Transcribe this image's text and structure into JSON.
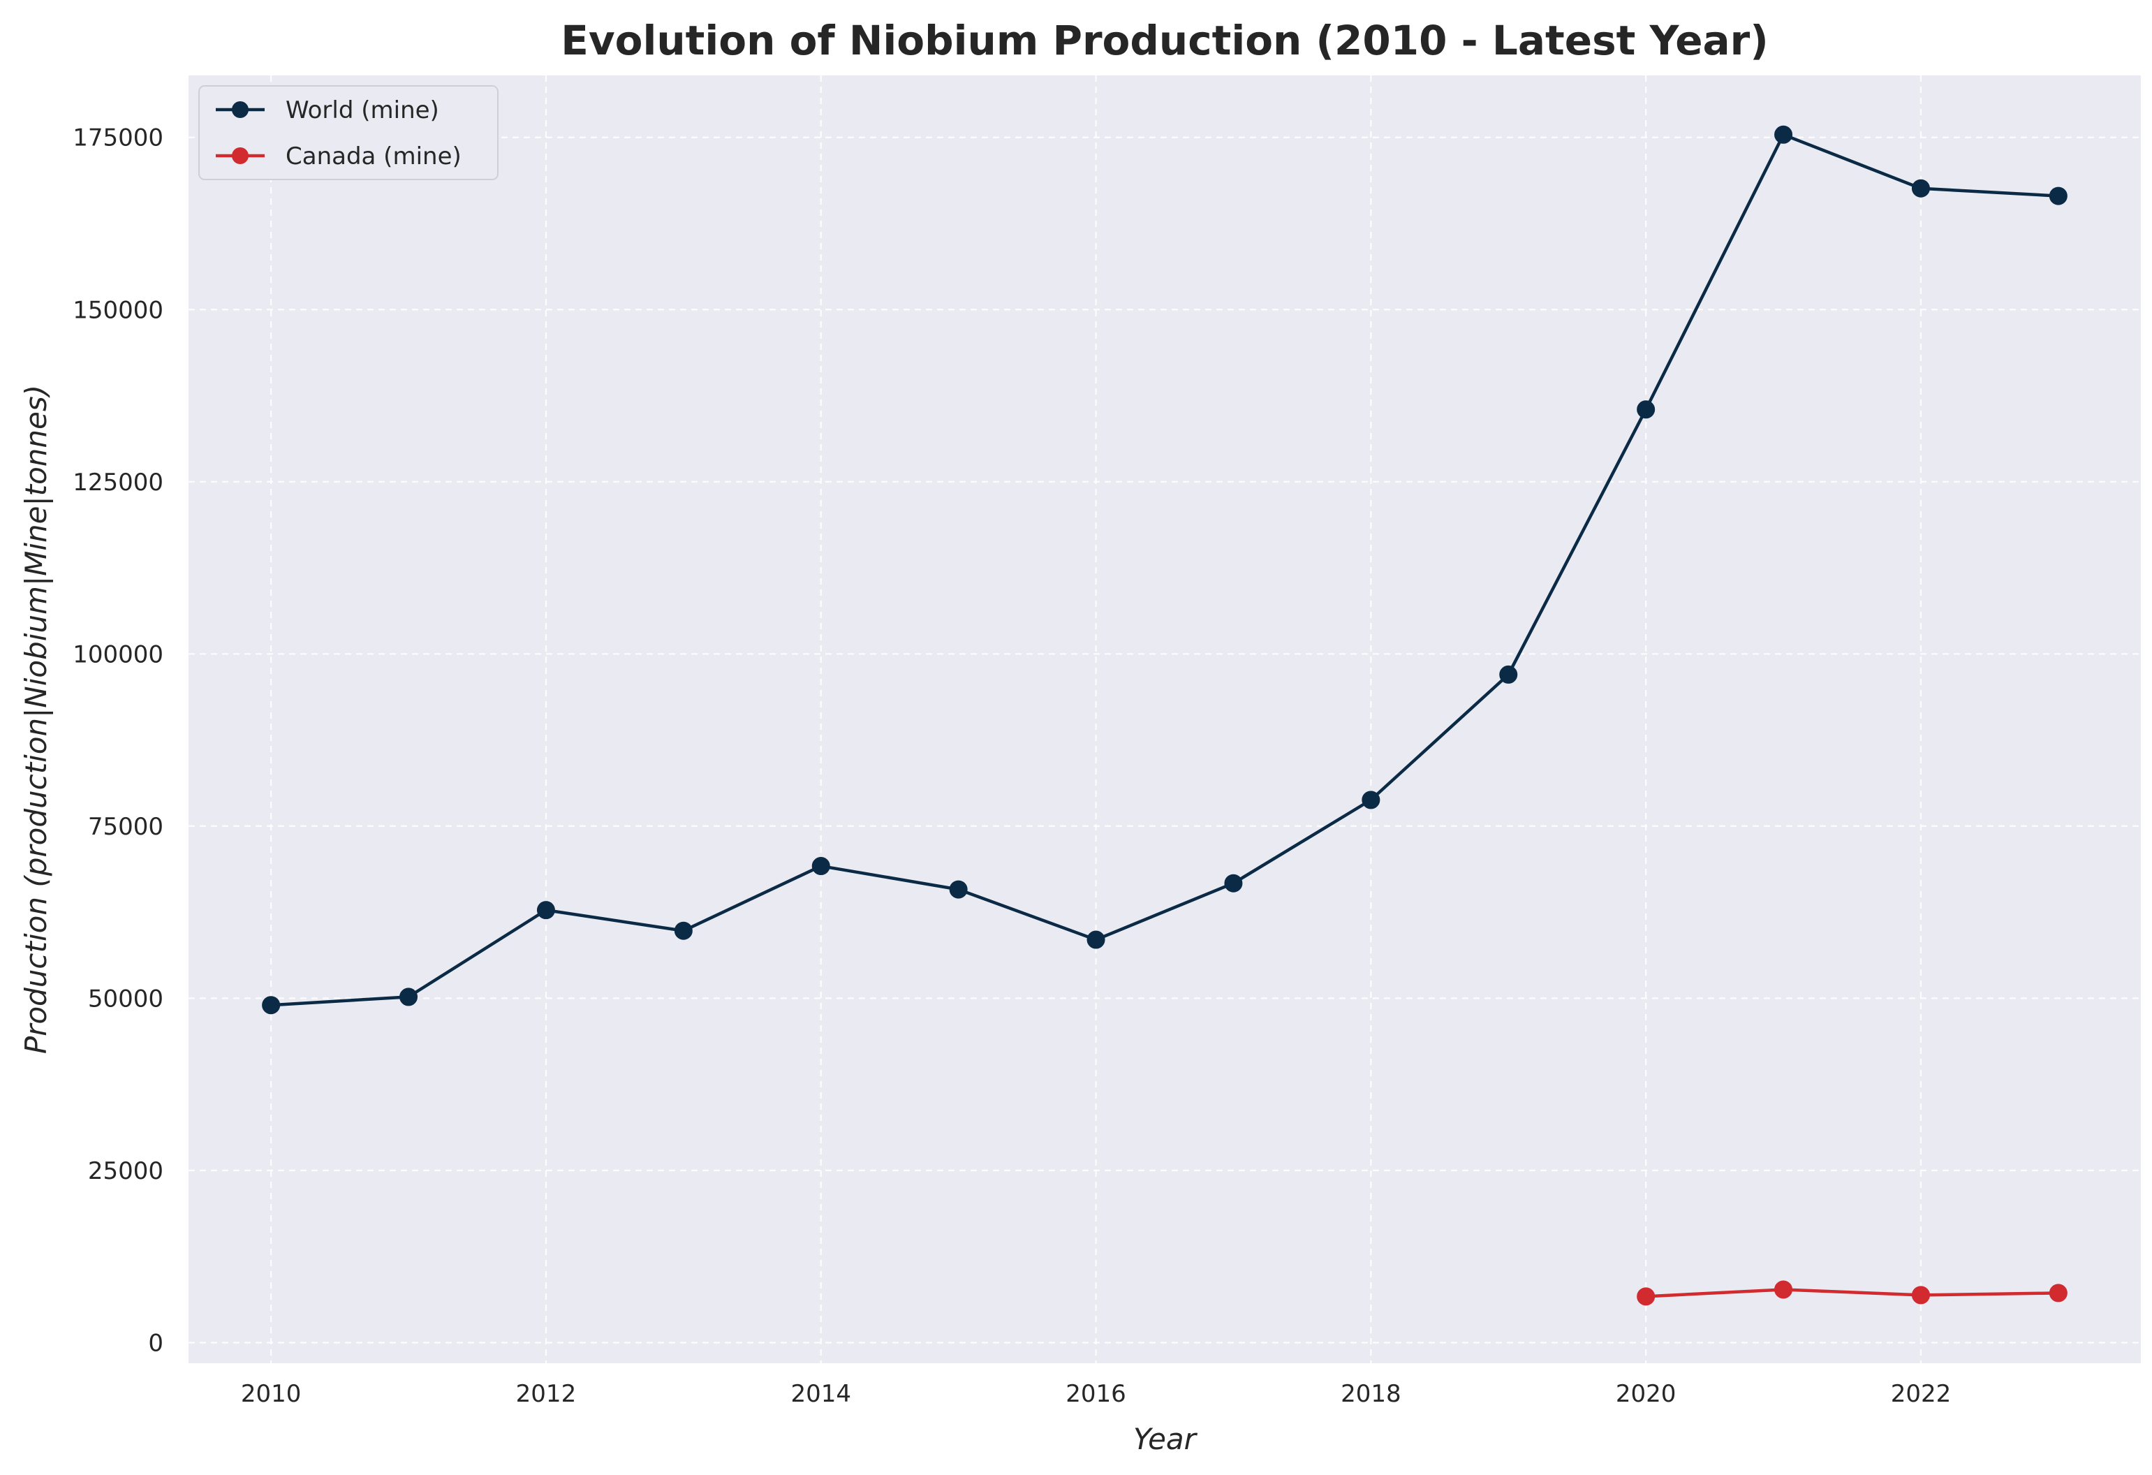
{
  "chart_data": {
    "type": "line",
    "title": "Evolution of Niobium Production (2010 - Latest Year)",
    "xlabel": "Year",
    "ylabel": "Production (production|Niobium|Mine|tonnes)",
    "xlim": [
      2009.4,
      2023.6
    ],
    "ylim": [
      -3000,
      184000
    ],
    "xticks": [
      2010,
      2012,
      2014,
      2016,
      2018,
      2020,
      2022
    ],
    "yticks": [
      0,
      25000,
      50000,
      75000,
      100000,
      125000,
      150000,
      175000
    ],
    "grid": true,
    "grid_style": "dashed",
    "legend_position": "top-left",
    "background_color": "#eaeaf2",
    "series": [
      {
        "name": "World (mine)",
        "color": "#0b2a45",
        "marker": "circle",
        "x": [
          2010,
          2011,
          2012,
          2013,
          2014,
          2015,
          2016,
          2017,
          2018,
          2019,
          2020,
          2021,
          2022,
          2023
        ],
        "values": [
          49000,
          50200,
          62800,
          59800,
          69200,
          65800,
          58500,
          66700,
          78800,
          97000,
          135500,
          175400,
          167600,
          166500
        ]
      },
      {
        "name": "Canada (mine)",
        "color": "#d12a2f",
        "marker": "circle",
        "x": [
          2020,
          2021,
          2022,
          2023
        ],
        "values": [
          6700,
          7700,
          6900,
          7200
        ]
      }
    ]
  }
}
